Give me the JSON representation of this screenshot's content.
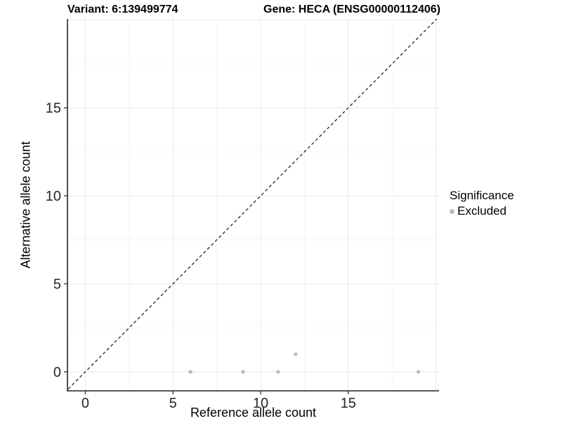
{
  "chart_data": {
    "type": "scatter",
    "title_left": "Variant: 6:139499774",
    "title_right": "Gene: HECA (ENSG00000112406)",
    "xlabel": "Reference allele count",
    "ylabel": "Alternative allele count",
    "xlim": [
      -1.02,
      20.18
    ],
    "ylim": [
      -1.08,
      20.05
    ],
    "xticks": [
      0,
      5,
      10,
      15
    ],
    "yticks": [
      0,
      5,
      10,
      15
    ],
    "grid_major": [
      0,
      5,
      10,
      15,
      20
    ],
    "grid_minor": [
      2.5,
      7.5,
      12.5,
      17.5
    ],
    "identity_line": {
      "style": "dashed",
      "slope": 1,
      "intercept": 0,
      "color": "#262626"
    },
    "series": [
      {
        "name": "Excluded",
        "color": "#bdbdbd",
        "marker_radius": 2.7,
        "points": [
          [
            6,
            0
          ],
          [
            9,
            0
          ],
          [
            11,
            0
          ],
          [
            12,
            1
          ],
          [
            19,
            0
          ]
        ]
      }
    ],
    "legend": {
      "title": "Significance",
      "position": "right",
      "entries": [
        {
          "label": "Excluded",
          "color": "#bdbdbd"
        }
      ]
    },
    "colors": {
      "background": "#ffffff",
      "grid_major": "#ebebeb",
      "grid_minor": "#f4f4f4",
      "axis_line": "#404040",
      "tick_text": "#262626",
      "title_text": "#000000"
    }
  }
}
